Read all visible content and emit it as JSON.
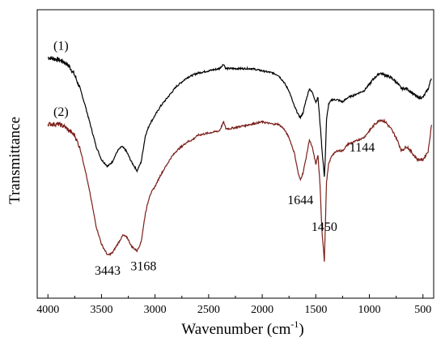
{
  "chart_data": {
    "type": "line",
    "xlabel": "Wavenumber (cm",
    "xlabel_sup": "-1",
    "xlabel_close": ")",
    "ylabel": "Transmittance",
    "xlim": [
      4100,
      400
    ],
    "x_reversed": true,
    "x_ticks": [
      4000,
      3500,
      3000,
      2500,
      2000,
      1500,
      1000,
      500
    ],
    "y_ticks_labeled": false,
    "grid": false,
    "series": [
      {
        "name": "(1)",
        "color": "#000000",
        "points": [
          [
            4000,
            0.88
          ],
          [
            3900,
            0.87
          ],
          [
            3850,
            0.86
          ],
          [
            3800,
            0.84
          ],
          [
            3750,
            0.8
          ],
          [
            3700,
            0.74
          ],
          [
            3650,
            0.66
          ],
          [
            3600,
            0.57
          ],
          [
            3550,
            0.48
          ],
          [
            3500,
            0.42
          ],
          [
            3443,
            0.39
          ],
          [
            3400,
            0.41
          ],
          [
            3350,
            0.46
          ],
          [
            3310,
            0.48
          ],
          [
            3270,
            0.46
          ],
          [
            3220,
            0.41
          ],
          [
            3168,
            0.37
          ],
          [
            3130,
            0.41
          ],
          [
            3090,
            0.53
          ],
          [
            3050,
            0.58
          ],
          [
            3000,
            0.62
          ],
          [
            2950,
            0.66
          ],
          [
            2900,
            0.69
          ],
          [
            2850,
            0.72
          ],
          [
            2800,
            0.75
          ],
          [
            2750,
            0.77
          ],
          [
            2700,
            0.79
          ],
          [
            2650,
            0.8
          ],
          [
            2600,
            0.81
          ],
          [
            2500,
            0.82
          ],
          [
            2400,
            0.83
          ],
          [
            2360,
            0.85
          ],
          [
            2340,
            0.83
          ],
          [
            2300,
            0.83
          ],
          [
            2200,
            0.83
          ],
          [
            2100,
            0.83
          ],
          [
            2000,
            0.82
          ],
          [
            1900,
            0.81
          ],
          [
            1850,
            0.8
          ],
          [
            1800,
            0.77
          ],
          [
            1750,
            0.73
          ],
          [
            1700,
            0.66
          ],
          [
            1660,
            0.62
          ],
          [
            1644,
            0.61
          ],
          [
            1620,
            0.63
          ],
          [
            1590,
            0.69
          ],
          [
            1560,
            0.74
          ],
          [
            1530,
            0.72
          ],
          [
            1500,
            0.68
          ],
          [
            1480,
            0.7
          ],
          [
            1460,
            0.58
          ],
          [
            1450,
            0.52
          ],
          [
            1440,
            0.45
          ],
          [
            1430,
            0.4
          ],
          [
            1420,
            0.34
          ],
          [
            1410,
            0.45
          ],
          [
            1400,
            0.6
          ],
          [
            1380,
            0.67
          ],
          [
            1350,
            0.69
          ],
          [
            1300,
            0.69
          ],
          [
            1250,
            0.68
          ],
          [
            1200,
            0.7
          ],
          [
            1144,
            0.71
          ],
          [
            1100,
            0.72
          ],
          [
            1050,
            0.73
          ],
          [
            1000,
            0.76
          ],
          [
            950,
            0.79
          ],
          [
            900,
            0.81
          ],
          [
            850,
            0.8
          ],
          [
            800,
            0.79
          ],
          [
            750,
            0.77
          ],
          [
            700,
            0.74
          ],
          [
            650,
            0.74
          ],
          [
            600,
            0.72
          ],
          [
            550,
            0.7
          ],
          [
            500,
            0.7
          ],
          [
            450,
            0.74
          ],
          [
            420,
            0.79
          ]
        ]
      },
      {
        "name": "(2)",
        "color": "#7a1f1a",
        "points": [
          [
            4000,
            0.58
          ],
          [
            3900,
            0.58
          ],
          [
            3850,
            0.57
          ],
          [
            3800,
            0.55
          ],
          [
            3750,
            0.53
          ],
          [
            3700,
            0.47
          ],
          [
            3650,
            0.37
          ],
          [
            3600,
            0.25
          ],
          [
            3550,
            0.12
          ],
          [
            3500,
            0.04
          ],
          [
            3443,
            -0.01
          ],
          [
            3400,
            0.0
          ],
          [
            3350,
            0.04
          ],
          [
            3300,
            0.08
          ],
          [
            3260,
            0.07
          ],
          [
            3220,
            0.03
          ],
          [
            3168,
            0.01
          ],
          [
            3130,
            0.05
          ],
          [
            3090,
            0.18
          ],
          [
            3050,
            0.26
          ],
          [
            3000,
            0.3
          ],
          [
            2950,
            0.35
          ],
          [
            2900,
            0.39
          ],
          [
            2850,
            0.43
          ],
          [
            2800,
            0.46
          ],
          [
            2750,
            0.48
          ],
          [
            2700,
            0.5
          ],
          [
            2650,
            0.51
          ],
          [
            2600,
            0.53
          ],
          [
            2500,
            0.54
          ],
          [
            2400,
            0.55
          ],
          [
            2360,
            0.59
          ],
          [
            2340,
            0.56
          ],
          [
            2300,
            0.56
          ],
          [
            2200,
            0.57
          ],
          [
            2100,
            0.58
          ],
          [
            2000,
            0.59
          ],
          [
            1900,
            0.58
          ],
          [
            1850,
            0.58
          ],
          [
            1800,
            0.56
          ],
          [
            1750,
            0.52
          ],
          [
            1700,
            0.45
          ],
          [
            1660,
            0.35
          ],
          [
            1644,
            0.33
          ],
          [
            1620,
            0.36
          ],
          [
            1590,
            0.43
          ],
          [
            1560,
            0.51
          ],
          [
            1530,
            0.47
          ],
          [
            1500,
            0.4
          ],
          [
            1480,
            0.44
          ],
          [
            1460,
            0.3
          ],
          [
            1450,
            0.18
          ],
          [
            1440,
            0.08
          ],
          [
            1430,
            0.03
          ],
          [
            1420,
            -0.04
          ],
          [
            1410,
            0.14
          ],
          [
            1400,
            0.32
          ],
          [
            1380,
            0.4
          ],
          [
            1350,
            0.44
          ],
          [
            1300,
            0.46
          ],
          [
            1250,
            0.46
          ],
          [
            1200,
            0.49
          ],
          [
            1144,
            0.5
          ],
          [
            1100,
            0.51
          ],
          [
            1050,
            0.52
          ],
          [
            1000,
            0.55
          ],
          [
            950,
            0.58
          ],
          [
            900,
            0.6
          ],
          [
            850,
            0.59
          ],
          [
            800,
            0.56
          ],
          [
            750,
            0.52
          ],
          [
            700,
            0.46
          ],
          [
            650,
            0.48
          ],
          [
            600,
            0.45
          ],
          [
            550,
            0.42
          ],
          [
            500,
            0.42
          ],
          [
            450,
            0.46
          ],
          [
            420,
            0.58
          ]
        ]
      }
    ],
    "annotations": [
      {
        "text": "3443",
        "x": 3443,
        "series": 1
      },
      {
        "text": "3168",
        "x": 3168,
        "series": 1
      },
      {
        "text": "1644",
        "x": 1644,
        "series": 1
      },
      {
        "text": "1450",
        "x": 1450,
        "series": 1
      },
      {
        "text": "1144",
        "x": 1144,
        "series": 1
      }
    ]
  }
}
